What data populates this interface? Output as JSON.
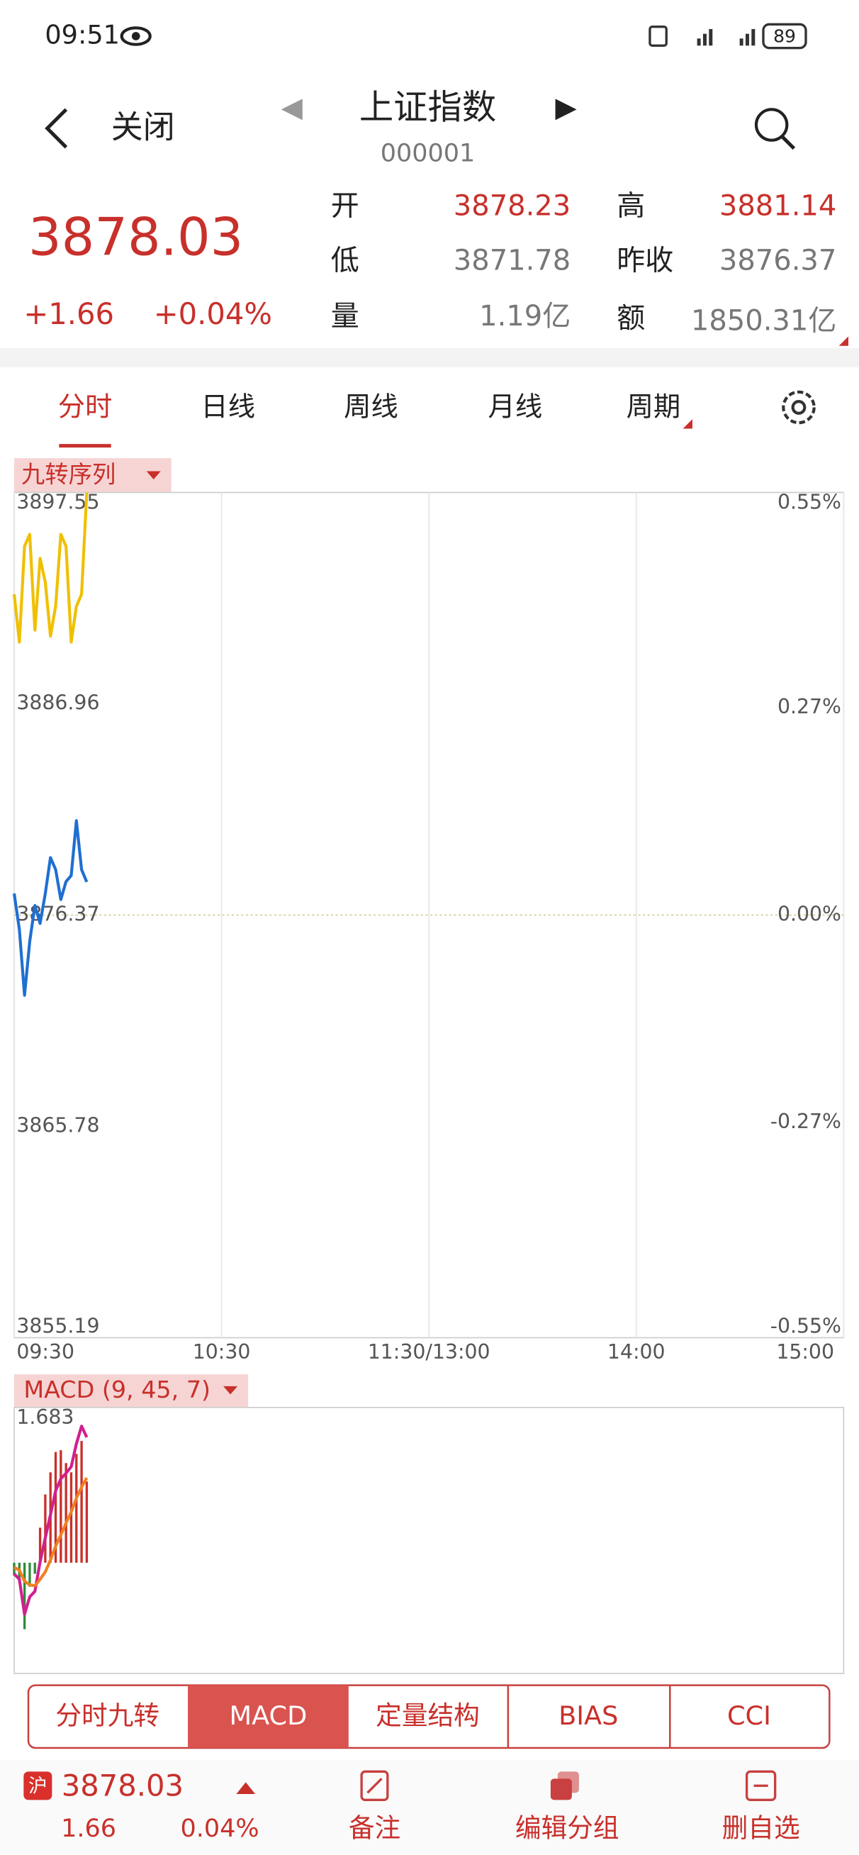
{
  "status_bar": {
    "time": "09:51",
    "battery": "89"
  },
  "header": {
    "back": "关闭",
    "title": "上证指数",
    "code": "000001"
  },
  "quote": {
    "price": "3878.03",
    "change": "+1.66",
    "change_pct": "+0.04%",
    "fields": [
      {
        "label": "开",
        "value": "3878.23"
      },
      {
        "label": "高",
        "value": "3881.14"
      },
      {
        "label": "低",
        "value": "3871.78"
      },
      {
        "label": "昨收",
        "value": "3876.37"
      },
      {
        "label": "量",
        "value": "1.19亿"
      },
      {
        "label": "额",
        "value": "1850.31亿"
      }
    ]
  },
  "tabs": [
    "分时",
    "日线",
    "周线",
    "月线",
    "周期"
  ],
  "chart_data": [
    {
      "type": "line",
      "indicator": "九转序列",
      "grid": true,
      "xlim": [
        0,
        240
      ],
      "xticks": [
        {
          "value": 0,
          "label": "09:30"
        },
        {
          "value": 60,
          "label": "10:30"
        },
        {
          "value": 120,
          "label": "11:30/13:00"
        },
        {
          "value": 180,
          "label": "14:00"
        },
        {
          "value": 240,
          "label": "15:00"
        }
      ],
      "ylim": [
        3855.19,
        3897.55
      ],
      "yticks": [
        3897.55,
        3886.96,
        3876.37,
        3865.78,
        3855.19
      ],
      "y2lim": [
        -0.55,
        0.55
      ],
      "y2ticks": [
        {
          "value": 0.55,
          "label": "0.55%"
        },
        {
          "value": 0.27,
          "label": "0.27%"
        },
        {
          "value": 0,
          "label": "0.00%"
        },
        {
          "value": -0.27,
          "label": "-0.27%"
        },
        {
          "value": -0.55,
          "label": "-0.55%"
        }
      ],
      "x": [
        0,
        1.5,
        3,
        4.5,
        6,
        7.5,
        9,
        10.5,
        12,
        13.5,
        15,
        16.5,
        18,
        19.5,
        21
      ],
      "series": [
        {
          "color": "#f0c000",
          "values": [
            3892.45,
            3890.05,
            3894.85,
            3895.45,
            3890.65,
            3894.25,
            3893.05,
            3890.35,
            3891.85,
            3895.45,
            3894.85,
            3890.05,
            3891.85,
            3892.45,
            3897.55
          ]
        },
        {
          "color": "#1f6fd1",
          "values": [
            3877.45,
            3875.65,
            3872.35,
            3875.05,
            3876.85,
            3875.95,
            3877.45,
            3879.25,
            3878.65,
            3877.15,
            3878.05,
            3878.35,
            3881.1,
            3878.65,
            3878.03
          ]
        }
      ]
    },
    {
      "type": "line",
      "indicator": "MACD (9, 45, 7)",
      "xlim": [
        0,
        240
      ],
      "ylim": [
        -1.2,
        1.683
      ],
      "yticks": [
        1.683
      ],
      "x": [
        0,
        1.5,
        3,
        4.5,
        6,
        7.5,
        9,
        10.5,
        12,
        13.5,
        15,
        16.5,
        18,
        19.5,
        21
      ],
      "histogram": {
        "up_color": "#c8302b",
        "down_color": "#2e8b3a",
        "values": [
          -0.14,
          -0.2,
          -0.72,
          -0.26,
          -0.12,
          0.38,
          0.74,
          0.98,
          1.2,
          1.22,
          1.08,
          0.98,
          1.18,
          1.32,
          0.88
        ]
      },
      "series": [
        {
          "color": "#d0208f",
          "values": [
            -0.12,
            -0.18,
            -0.56,
            -0.37,
            -0.31,
            0.01,
            0.27,
            0.52,
            0.78,
            0.91,
            0.97,
            1.04,
            1.29,
            1.48,
            1.36
          ]
        },
        {
          "color": "#f08020",
          "values": [
            -0.05,
            -0.08,
            -0.2,
            -0.24,
            -0.25,
            -0.18,
            -0.1,
            0.03,
            0.18,
            0.3,
            0.43,
            0.55,
            0.7,
            0.82,
            0.92
          ]
        }
      ]
    }
  ],
  "indicator_tabs": [
    "分时九转",
    "MACD",
    "定量结构",
    "BIAS",
    "CCI"
  ],
  "footer": {
    "badge": "沪",
    "price": "3878.03",
    "change": "1.66",
    "change_pct": "0.04%",
    "actions": [
      "备注",
      "编辑分组",
      "删自选"
    ]
  }
}
